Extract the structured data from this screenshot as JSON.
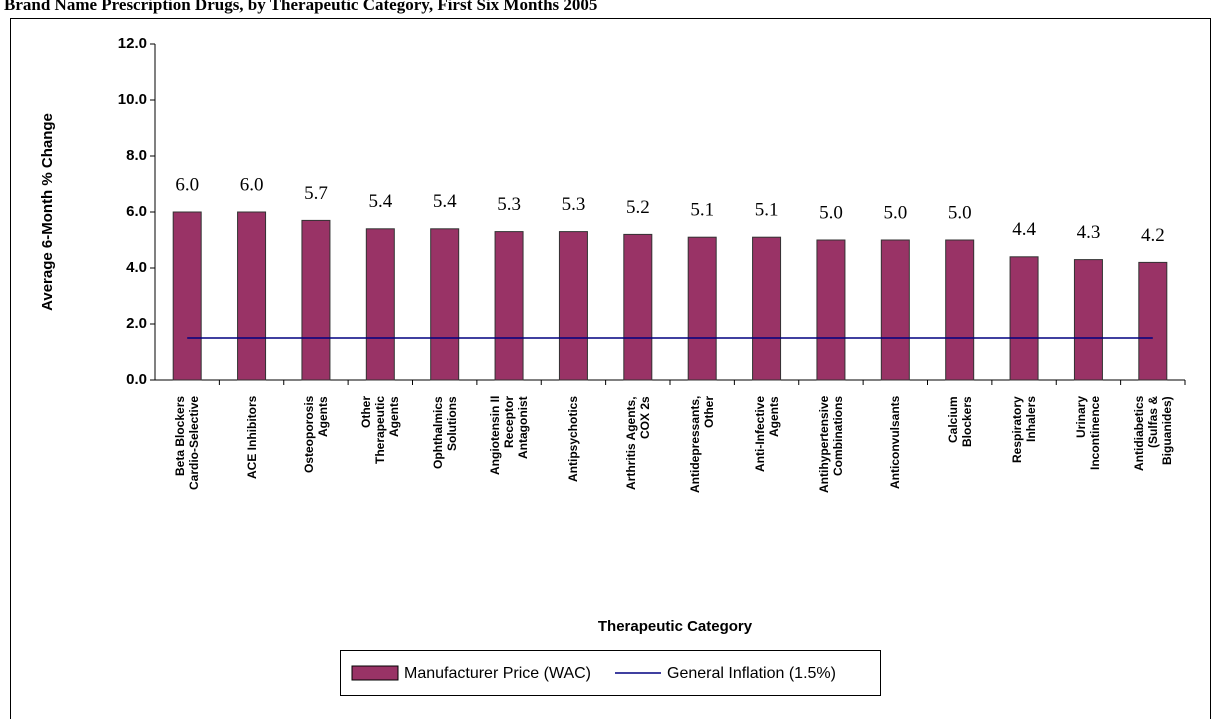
{
  "chart_data": {
    "type": "bar",
    "title": "Brand Name Prescription Drugs, by Therapeutic Category, First Six Months 2005",
    "ylabel": "Average 6-Month % Change",
    "xlabel": "Therapeutic Category",
    "categories": [
      "Beta Blockers\nCardio-Selective",
      "ACE Inhibitors",
      "Osteoporosis\nAgents",
      "Other\nTherapeutic\nAgents",
      "Ophthalmics\nSolutions",
      "Angiotensin II\nReceptor\nAntagonist",
      "Antipsychotics",
      "Arthritis Agents,\nCOX 2s",
      "Antidepressants,\nOther",
      "Anti-Infective\nAgents",
      "Antihypertensive\nCombinations",
      "Anticonvulsants",
      "Calcium\nBlockers",
      "Respiratory\nInhalers",
      "Urinary\nIncontinence",
      "Antidiabetics\n(Sulfas &\nBiguanides)"
    ],
    "series": [
      {
        "name": "Manufacturer Price (WAC)",
        "type": "bar",
        "color": "#993366",
        "values": [
          6.0,
          6.0,
          5.7,
          5.4,
          5.4,
          5.3,
          5.3,
          5.2,
          5.1,
          5.1,
          5.0,
          5.0,
          5.0,
          4.4,
          4.3,
          4.2
        ],
        "value_labels": [
          "6.0",
          "6.0",
          "5.7",
          "5.4",
          "5.4",
          "5.3",
          "5.3",
          "5.2",
          "5.1",
          "5.1",
          "5.0",
          "5.0",
          "5.0",
          "4.4",
          "4.3",
          "4.2"
        ]
      },
      {
        "name": "General Inflation (1.5%)",
        "type": "line",
        "color": "#000080",
        "values": [
          1.5,
          1.5,
          1.5,
          1.5,
          1.5,
          1.5,
          1.5,
          1.5,
          1.5,
          1.5,
          1.5,
          1.5,
          1.5,
          1.5,
          1.5,
          1.5
        ]
      }
    ],
    "ylim": [
      0,
      12
    ],
    "yticks": [
      {
        "value": 0,
        "label": "0.0"
      },
      {
        "value": 2,
        "label": "2.0"
      },
      {
        "value": 4,
        "label": "4.0"
      },
      {
        "value": 6,
        "label": "6.0"
      },
      {
        "value": 8,
        "label": "8.0"
      },
      {
        "value": 10,
        "label": "10.0"
      },
      {
        "value": 12,
        "label": "12.0"
      }
    ],
    "legend": "bottom"
  }
}
